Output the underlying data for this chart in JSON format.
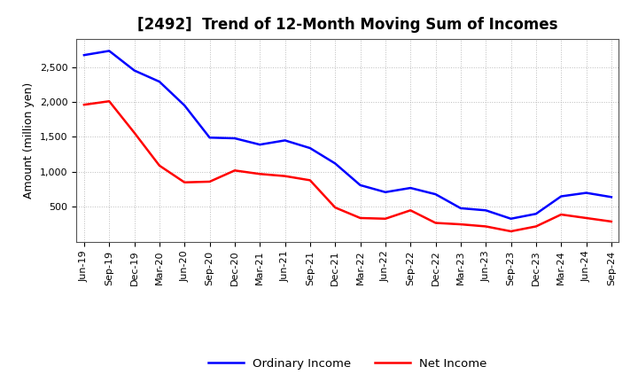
{
  "title": "[2492]  Trend of 12-Month Moving Sum of Incomes",
  "ylabel": "Amount (million yen)",
  "x_labels": [
    "Jun-19",
    "Sep-19",
    "Dec-19",
    "Mar-20",
    "Jun-20",
    "Sep-20",
    "Dec-20",
    "Mar-21",
    "Jun-21",
    "Sep-21",
    "Dec-21",
    "Mar-22",
    "Jun-22",
    "Sep-22",
    "Dec-22",
    "Mar-23",
    "Jun-23",
    "Sep-23",
    "Dec-23",
    "Mar-24",
    "Jun-24",
    "Sep-24"
  ],
  "ordinary_income": [
    2670,
    2730,
    2450,
    2290,
    1950,
    1490,
    1480,
    1390,
    1450,
    1340,
    1120,
    810,
    710,
    770,
    680,
    480,
    450,
    330,
    400,
    650,
    700,
    640
  ],
  "net_income": [
    1960,
    2010,
    1560,
    1090,
    850,
    860,
    1020,
    970,
    940,
    880,
    490,
    340,
    330,
    450,
    270,
    250,
    220,
    150,
    220,
    390,
    340,
    290
  ],
  "ordinary_color": "#0000FF",
  "net_color": "#FF0000",
  "ylim": [
    0,
    2900
  ],
  "yticks": [
    500,
    1000,
    1500,
    2000,
    2500
  ],
  "background_color": "#FFFFFF",
  "grid_color": "#AAAAAA",
  "title_fontsize": 12,
  "axis_fontsize": 9,
  "tick_fontsize": 8,
  "legend_labels": [
    "Ordinary Income",
    "Net Income"
  ]
}
